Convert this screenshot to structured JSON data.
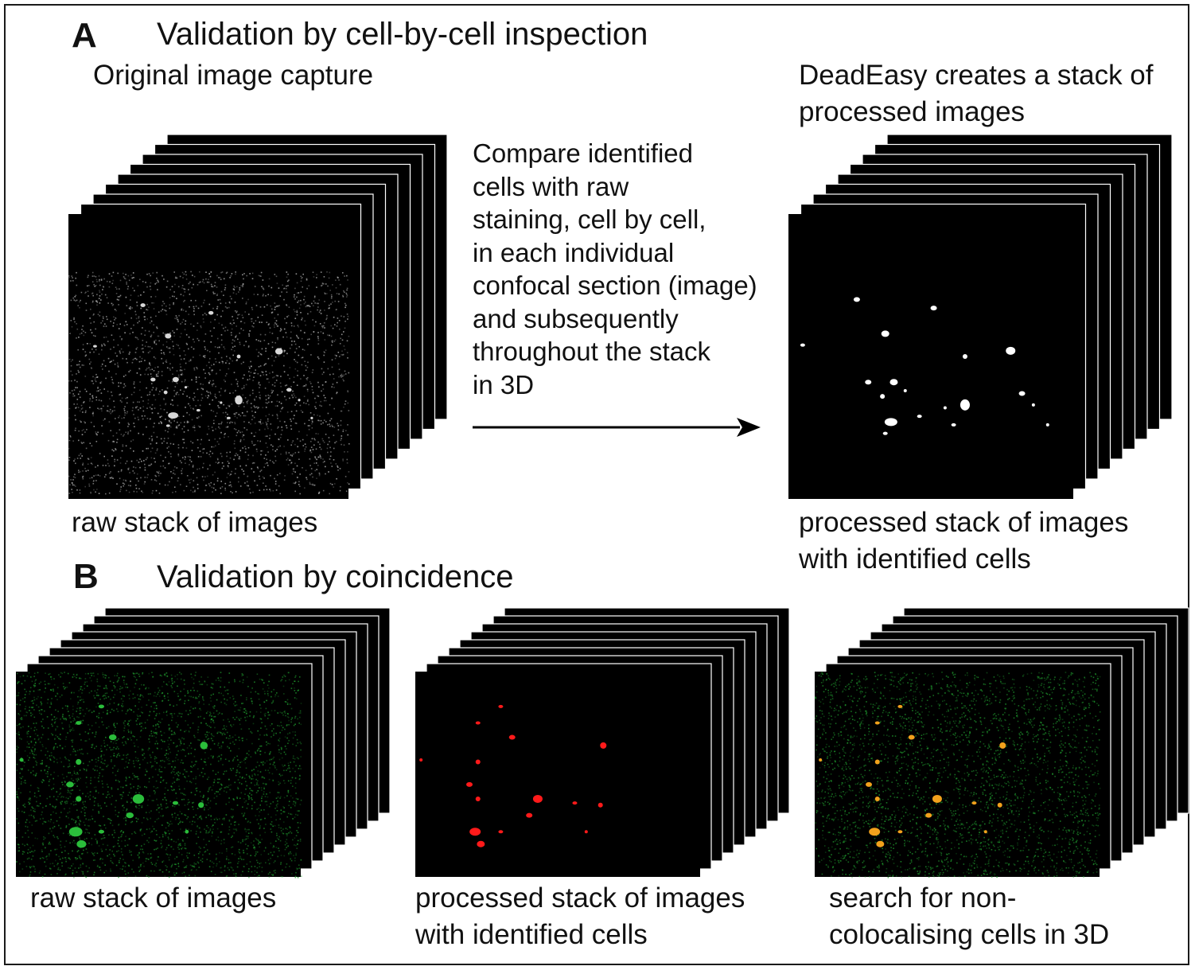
{
  "panel_a": {
    "letter": "A",
    "heading": "Validation by cell-by-cell inspection",
    "left_title": "Original image capture",
    "right_title": "DeadEasy creates a stack of processed images",
    "left_caption": "raw stack of images",
    "right_caption": "processed stack of images with identified cells",
    "instructions": [
      "Compare identified",
      "cells with raw",
      "staining, cell by cell,",
      "in each individual",
      "confocal section (image)",
      "and subsequently",
      "throughout the stack",
      "in 3D"
    ]
  },
  "panel_b": {
    "letter": "B",
    "heading": "Validation by coincidence",
    "left_caption": "raw stack of images",
    "middle_caption": "processed stack of images with identified cells",
    "right_caption": "search for non-colocalising cells in 3D"
  },
  "colors": {
    "raw_grey": "#bdbdbd",
    "processed_white": "#ffffff",
    "raw_green": "#1f9a2e",
    "processed_red": "#ff1a1a",
    "overlay_orange": "#f2a11c",
    "background": "#000000"
  }
}
